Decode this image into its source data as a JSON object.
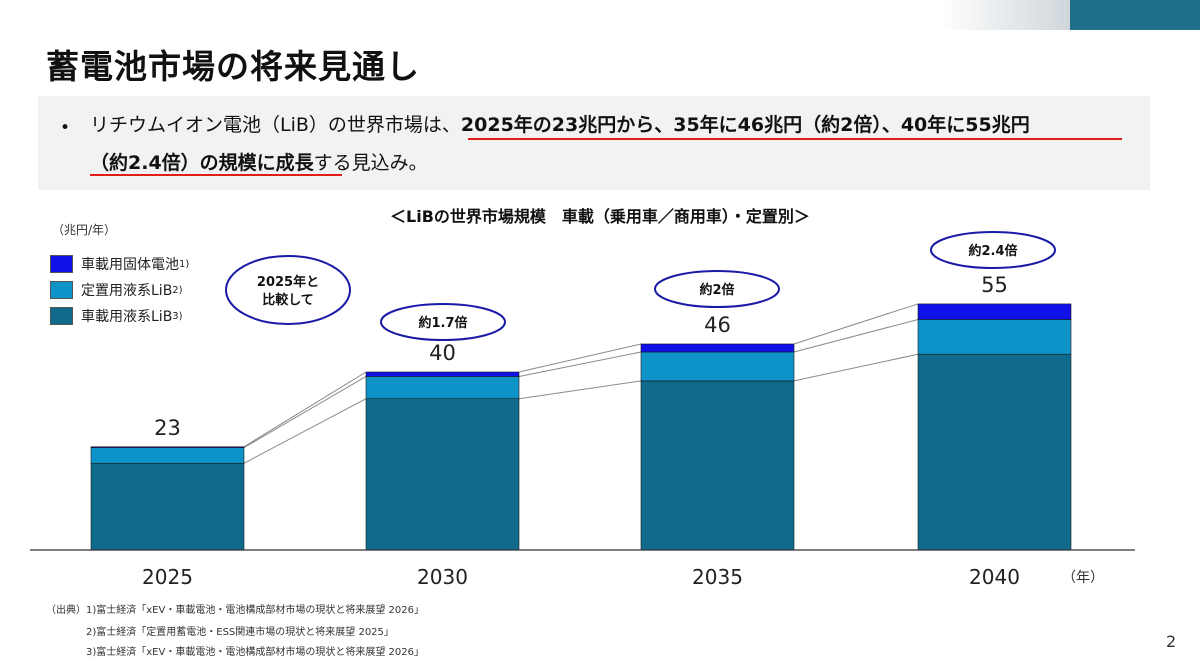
{
  "title": "蓄電池市場の将来見通し",
  "summary": {
    "bullet": "•",
    "line1_prefix": "リチウムイオン電池（LiB）の世界市場は、",
    "line1_bold": "2025年の23兆円から、35年に46兆円（約2倍）、40年に55兆円",
    "line2_bold": "（約2.4倍）の規模に成長",
    "line2_suffix": "する見込み。"
  },
  "chart_data": {
    "type": "bar",
    "stacked": true,
    "title": "＜LiBの世界市場規模　車載（乗用車／商用車）・定置別＞",
    "unit_label": "（兆円/年）",
    "x_unit_label": "（年）",
    "categories": [
      "2025",
      "2030",
      "2035",
      "2040"
    ],
    "totals": [
      23,
      40,
      46,
      55
    ],
    "series": [
      {
        "name": "車載用液系LiB",
        "note": "3)",
        "color": "#106a8c",
        "values": [
          19.5,
          34,
          38,
          44
        ]
      },
      {
        "name": "定置用液系LiB",
        "note": "2)",
        "color": "#0e93c9",
        "values": [
          3.5,
          5,
          6.5,
          7.8
        ]
      },
      {
        "name": "車載用固体電池",
        "note": "1)",
        "color": "#1010e8",
        "values": [
          0.2,
          1,
          1.8,
          3.5
        ]
      }
    ],
    "ylim": [
      0,
      60
    ],
    "annotations": [
      {
        "category": "2025",
        "text": "2025年と比較して",
        "line1": "2025年と",
        "line2": "比較して"
      },
      {
        "category": "2030",
        "text": "約1.7倍"
      },
      {
        "category": "2035",
        "text": "約2倍"
      },
      {
        "category": "2040",
        "text": "約2.4倍"
      }
    ],
    "legend": "top-left",
    "grid": false
  },
  "sources": [
    "（出典）1)富士経済「xEV・車載電池・電池構成部材市場の現状と将来展望 2026」",
    "2)富士経済「定置用蓄電池・ESS関連市場の現状と将来展望 2025」",
    "3)富士経済「xEV・車載電池・電池構成部材市場の現状と将来展望 2026」"
  ],
  "page_number": "2"
}
